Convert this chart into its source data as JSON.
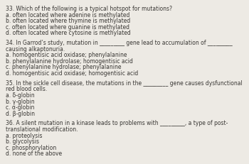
{
  "background_color": "#edeae4",
  "text_color": "#3a3835",
  "font_size": 5.5,
  "lines": [
    "33. Which of the following is a typical hotspot for mutations?",
    "a. often located where adenine is methylated",
    "b. often located where thymine is methylated",
    "c. often located where guanine is methylated",
    "d. often located where cytosine is methylated",
    "",
    "34. In Garrod’s study, mutation in _________ gene lead to accumulation of _________",
    "causing alkaptonuria.",
    "a. homogentisic acid oxidase; phenylalanine",
    "b. phenylalanine hydrolase; homogentisic acid",
    "c. phenylalanine hydrolase; phenylalanine",
    "d. homogentisic acid oxidase; homogentisic acid",
    "",
    "35. In the sickle cell disease, the mutations in the _________ gene causes dysfunctional",
    "red blood cells.",
    "a. δ-globin",
    "b. γ-globin",
    "c. α-globin",
    "d. β-globin",
    "",
    "36. A silent mutation in a kinase leads to problems with _________, a type of post-",
    "translational modification.",
    "a. proteolysis",
    "b. glycolysis",
    "c. phosphorylation",
    "d. none of the above"
  ]
}
